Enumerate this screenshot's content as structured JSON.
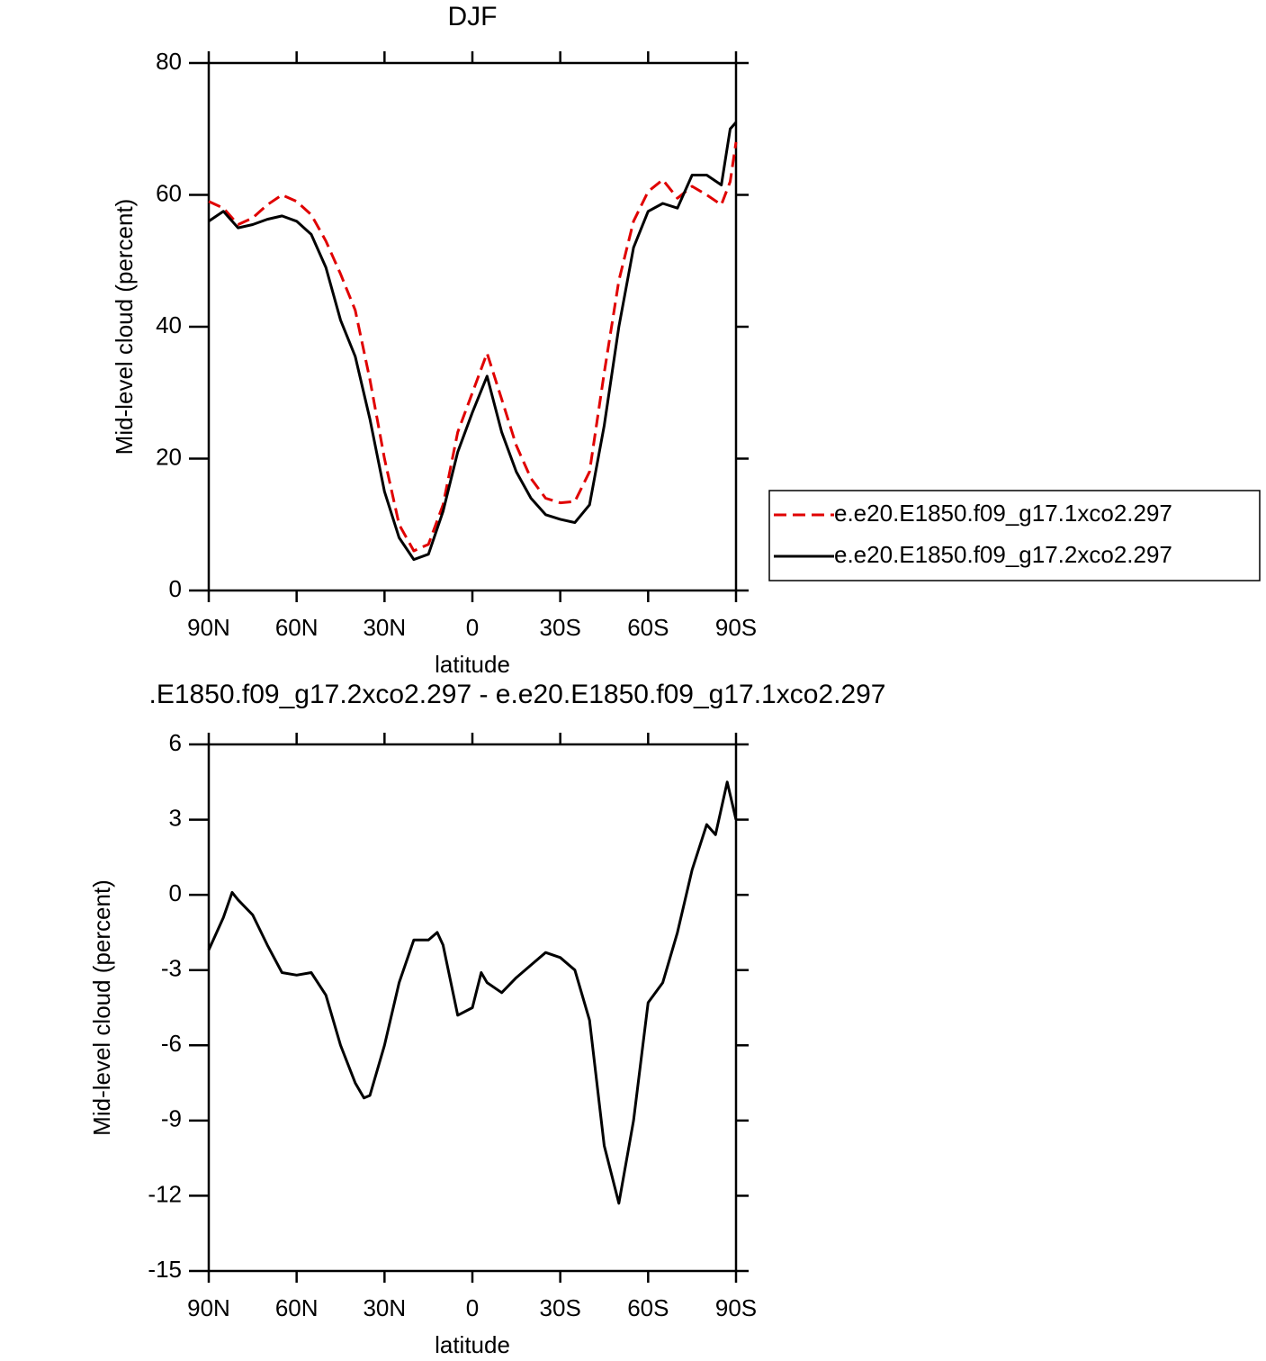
{
  "chart_data": [
    {
      "type": "line",
      "title": "DJF",
      "xlabel": "latitude",
      "ylabel": "Mid-level cloud (percent)",
      "x": [
        90,
        85,
        80,
        75,
        70,
        65,
        60,
        55,
        50,
        45,
        40,
        35,
        30,
        25,
        20,
        15,
        10,
        5,
        0,
        -5,
        -10,
        -15,
        -20,
        -25,
        -30,
        -35,
        -40,
        -45,
        -50,
        -55,
        -60,
        -65,
        -70,
        -75,
        -80,
        -85,
        -88,
        -90
      ],
      "series": [
        {
          "name": "e.e20.E1850.f09_g17.1xco2.297",
          "color": "#e00000",
          "style": "dashed",
          "values": [
            59,
            58,
            55.5,
            56.5,
            58.5,
            60,
            59,
            57,
            53,
            48,
            42.5,
            32,
            20,
            10,
            6,
            7,
            13,
            24,
            30,
            36,
            29,
            22,
            17,
            14,
            13.3,
            13.5,
            18,
            33,
            47,
            56,
            60.5,
            62.3,
            59.5,
            61.3,
            60,
            58.5,
            62,
            68
          ]
        },
        {
          "name": "e.e20.E1850.f09_g17.2xco2.297",
          "color": "#000000",
          "style": "solid",
          "values": [
            56,
            57.5,
            55,
            55.5,
            56.3,
            56.8,
            56,
            54,
            49,
            41,
            35.5,
            26,
            15,
            8,
            4.7,
            5.5,
            12,
            21,
            27,
            32.5,
            24,
            18,
            14,
            11.5,
            10.8,
            10.3,
            13,
            25,
            40,
            52,
            57.5,
            58.7,
            58,
            63,
            63,
            61.5,
            70,
            71
          ]
        }
      ],
      "xlim": [
        90,
        -90
      ],
      "xticks": [
        {
          "value": 90,
          "label": "90N"
        },
        {
          "value": 60,
          "label": "60N"
        },
        {
          "value": 30,
          "label": "30N"
        },
        0,
        {
          "value": -30,
          "label": "30S"
        },
        {
          "value": -60,
          "label": "60S"
        },
        {
          "value": -90,
          "label": "90S"
        }
      ],
      "ylim": [
        0,
        80
      ],
      "yticks": [
        0,
        20,
        40,
        60,
        80
      ],
      "legend": "right"
    },
    {
      "type": "line",
      "title": ".E1850.f09_g17.2xco2.297 - e.e20.E1850.f09_g17.1xco2.297",
      "xlabel": "latitude",
      "ylabel": "Mid-level cloud (percent)",
      "x": [
        90,
        85,
        82,
        80,
        75,
        70,
        65,
        60,
        55,
        50,
        45,
        40,
        37,
        35,
        30,
        25,
        20,
        15,
        12,
        10,
        5,
        0,
        -3,
        -5,
        -10,
        -15,
        -20,
        -25,
        -30,
        -35,
        -40,
        -45,
        -50,
        -55,
        -60,
        -65,
        -70,
        -75,
        -80,
        -83,
        -87,
        -90
      ],
      "series": [
        {
          "color": "#000000",
          "style": "solid",
          "values": [
            -2.2,
            -0.9,
            0.1,
            -0.2,
            -0.8,
            -2.0,
            -3.1,
            -3.2,
            -3.1,
            -4.0,
            -6.0,
            -7.5,
            -8.1,
            -8.0,
            -6.0,
            -3.5,
            -1.8,
            -1.8,
            -1.5,
            -2.0,
            -4.8,
            -4.5,
            -3.1,
            -3.5,
            -3.9,
            -3.3,
            -2.8,
            -2.3,
            -2.5,
            -3.0,
            -5.0,
            -10.0,
            -12.3,
            -9.0,
            -4.3,
            -3.5,
            -1.5,
            1.0,
            2.8,
            2.4,
            4.5,
            3.0
          ]
        }
      ],
      "xlim": [
        90,
        -90
      ],
      "xticks": [
        {
          "value": 90,
          "label": "90N"
        },
        {
          "value": 60,
          "label": "60N"
        },
        {
          "value": 30,
          "label": "30N"
        },
        0,
        {
          "value": -30,
          "label": "30S"
        },
        {
          "value": -60,
          "label": "60S"
        },
        {
          "value": -90,
          "label": "90S"
        }
      ],
      "ylim": [
        -15,
        6
      ],
      "yticks": [
        -15,
        -12,
        -9,
        -6,
        -3,
        0,
        3,
        6
      ]
    }
  ]
}
